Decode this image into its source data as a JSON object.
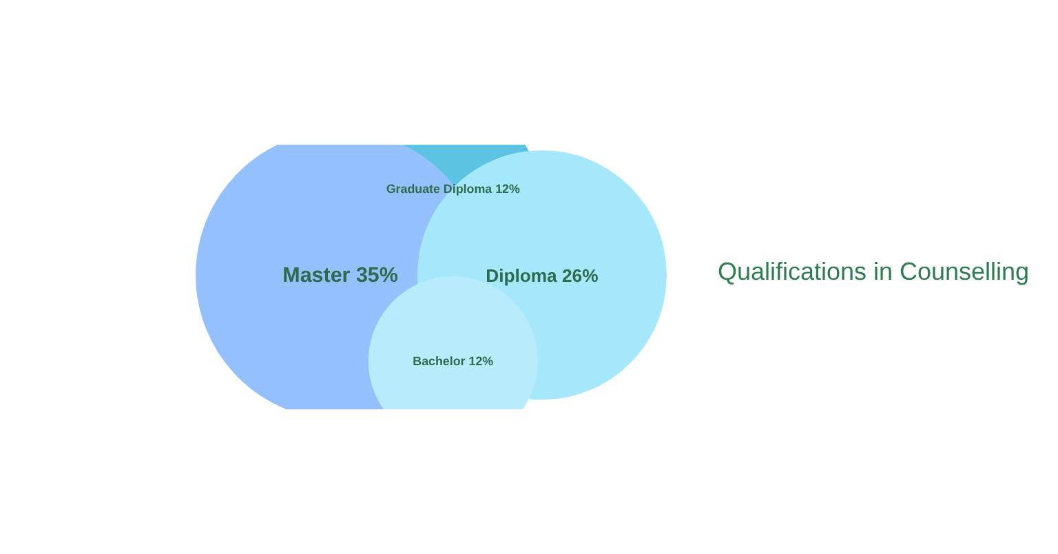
{
  "chart_data": {
    "type": "other",
    "title": "Qualifications in Counselling",
    "categories": [
      "Graduate Diploma",
      "Master",
      "Diploma",
      "Bachelor"
    ],
    "values": [
      12,
      35,
      26,
      12
    ],
    "value_labels": [
      "12%",
      "35%",
      "26%",
      "12%"
    ],
    "colors": [
      "#5dc3e3",
      "#94c0fd",
      "#a5e8fc",
      "#b8ecfd"
    ]
  }
}
